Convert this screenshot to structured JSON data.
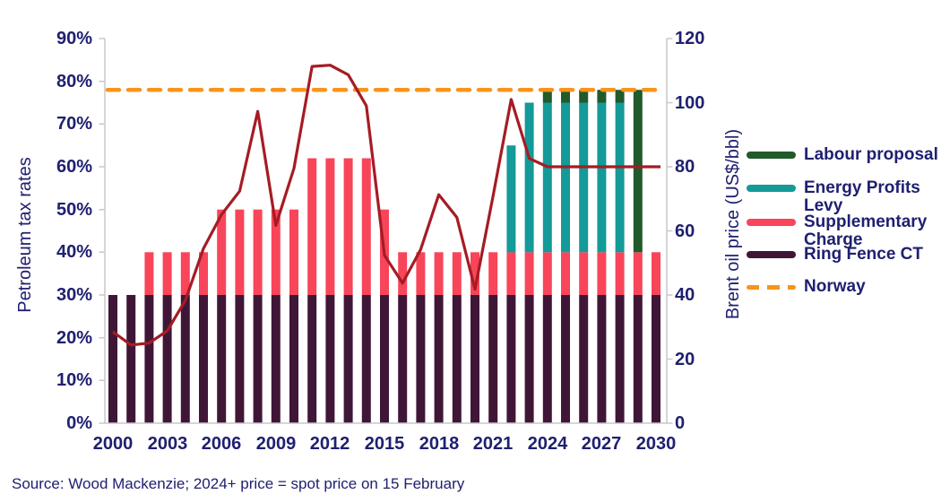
{
  "chart_data": {
    "type": "combo-stacked-bar-line",
    "title": "",
    "x": [
      2000,
      2001,
      2002,
      2003,
      2004,
      2005,
      2006,
      2007,
      2008,
      2009,
      2010,
      2011,
      2012,
      2013,
      2014,
      2015,
      2016,
      2017,
      2018,
      2019,
      2020,
      2021,
      2022,
      2023,
      2024,
      2025,
      2026,
      2027,
      2028,
      2029,
      2030
    ],
    "x_tick_labels": [
      "2000",
      "2003",
      "2006",
      "2009",
      "2012",
      "2015",
      "2018",
      "2021",
      "2024",
      "2027",
      "2030"
    ],
    "y_left": {
      "title": "Petroleum tax rates",
      "min": 0,
      "max": 90,
      "ticks": [
        "0%",
        "10%",
        "20%",
        "30%",
        "40%",
        "50%",
        "60%",
        "70%",
        "80%",
        "90%"
      ]
    },
    "y_right": {
      "title": "Brent oil price (US$/bbl)",
      "min": 0,
      "max": 120,
      "ticks": [
        "0",
        "20",
        "40",
        "60",
        "80",
        "100",
        "120"
      ]
    },
    "grid": "off",
    "legend_position": "right",
    "series": [
      {
        "name": "Ring Fence CT",
        "type": "bar",
        "stack_order": 1,
        "color": "#401637",
        "axis": "left",
        "values": [
          30,
          30,
          30,
          30,
          30,
          30,
          30,
          30,
          30,
          30,
          30,
          30,
          30,
          30,
          30,
          30,
          30,
          30,
          30,
          30,
          30,
          30,
          30,
          30,
          30,
          30,
          30,
          30,
          30,
          30,
          30
        ]
      },
      {
        "name": "Supplementary Charge",
        "type": "bar",
        "stack_order": 2,
        "color": "#f8455a",
        "axis": "left",
        "values": [
          0,
          0,
          10,
          10,
          10,
          10,
          20,
          20,
          20,
          20,
          20,
          32,
          32,
          32,
          32,
          20,
          10,
          10,
          10,
          10,
          10,
          10,
          10,
          10,
          10,
          10,
          10,
          10,
          10,
          10,
          10
        ]
      },
      {
        "name": "Energy Profits Levy",
        "type": "bar",
        "stack_order": 3,
        "color": "#149a98",
        "axis": "left",
        "values": [
          0,
          0,
          0,
          0,
          0,
          0,
          0,
          0,
          0,
          0,
          0,
          0,
          0,
          0,
          0,
          0,
          0,
          0,
          0,
          0,
          0,
          0,
          25,
          35,
          35,
          35,
          35,
          35,
          35,
          0,
          0
        ]
      },
      {
        "name": "Labour proposal",
        "type": "bar",
        "stack_order": 4,
        "color": "#215a2b",
        "axis": "left",
        "values": [
          0,
          0,
          0,
          0,
          0,
          0,
          0,
          0,
          0,
          0,
          0,
          0,
          0,
          0,
          0,
          0,
          0,
          0,
          0,
          0,
          0,
          0,
          0,
          0,
          3,
          3,
          3,
          3,
          3,
          38,
          0
        ]
      },
      {
        "name": "Brent oil price",
        "type": "line",
        "color": "#a51c24",
        "axis": "right",
        "values": [
          28.5,
          24.4,
          25.0,
          28.8,
          38.3,
          54.5,
          65.1,
          72.4,
          97.3,
          61.7,
          79.5,
          111.3,
          111.7,
          108.7,
          99.0,
          52.4,
          43.7,
          54.2,
          71.3,
          64.2,
          41.8,
          70.9,
          101.0,
          82.6,
          80,
          80,
          80,
          80,
          80,
          80,
          80
        ]
      },
      {
        "name": "Norway",
        "type": "reference-line",
        "style": "dashed",
        "color": "#f8941c",
        "axis": "left",
        "value": 78
      }
    ],
    "legend": [
      {
        "label": "Labour proposal",
        "color": "#215a2b",
        "style": "bar"
      },
      {
        "label": "Energy Profits Levy",
        "color": "#149a98",
        "style": "bar"
      },
      {
        "label": "Supplementary Charge",
        "color": "#f8455a",
        "style": "bar"
      },
      {
        "label": "Ring Fence CT",
        "color": "#401637",
        "style": "bar"
      },
      {
        "label": "Norway",
        "color": "#f8941c",
        "style": "dash"
      }
    ]
  },
  "colors": {
    "text_navy": "#1f2070",
    "axis_gray": "#c9c9c9",
    "bar_ring_fence_ct": "#401637",
    "bar_supplementary_charge": "#f8455a",
    "bar_energy_profits_levy": "#149a98",
    "bar_labour_proposal": "#215a2b",
    "line_brent": "#a51c24",
    "line_norway": "#f8941c"
  },
  "source_note": "Source: Wood Mackenzie; 2024+ price = spot price on 15 February"
}
